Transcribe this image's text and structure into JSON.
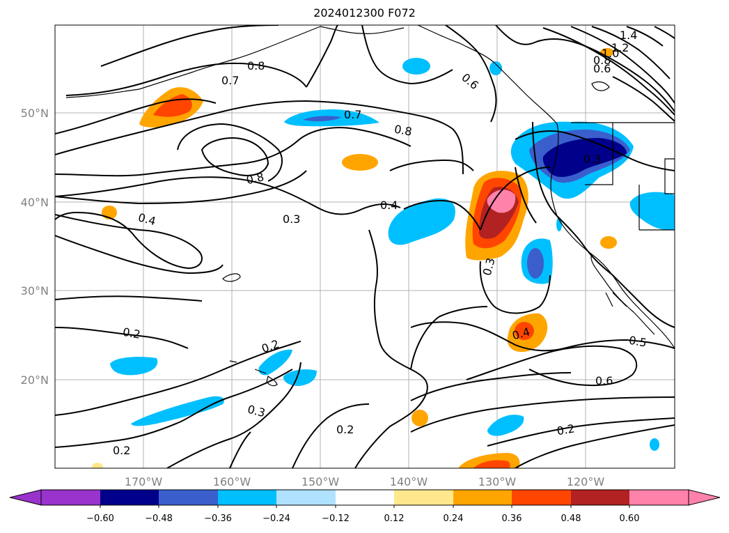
{
  "title": "2024012300 F072",
  "map": {
    "lon_labels": [
      "170°W",
      "160°W",
      "150°W",
      "140°W",
      "130°W",
      "120°W"
    ],
    "lat_labels": [
      "50°N",
      "40°N",
      "30°N",
      "20°N"
    ],
    "contour_labels": [
      "1.4",
      "1.2",
      "1.0",
      "0.8",
      "0.6",
      "0.8",
      "0.7",
      "0.6",
      "0.7",
      "0.8",
      "0.8",
      "0.4",
      "0.3",
      "0.4",
      "0.3",
      "0.3",
      "0.2",
      "0.2",
      "0.3",
      "0.2",
      "0.4",
      "0.5",
      "0.6",
      "0.2",
      "0.2"
    ],
    "gridline_color": "#b0b0b0"
  },
  "colorbar": {
    "ticks": [
      "−0.60",
      "−0.48",
      "−0.36",
      "−0.24",
      "−0.12",
      "0.12",
      "0.24",
      "0.36",
      "0.48",
      "0.60"
    ],
    "colors": [
      "#9933cc",
      "#00008b",
      "#3a5fcd",
      "#00bfff",
      "#b0e2ff",
      "#ffffff",
      "#ffe88c",
      "#ffa500",
      "#ff4500",
      "#b22222",
      "#ff82ab"
    ]
  }
}
